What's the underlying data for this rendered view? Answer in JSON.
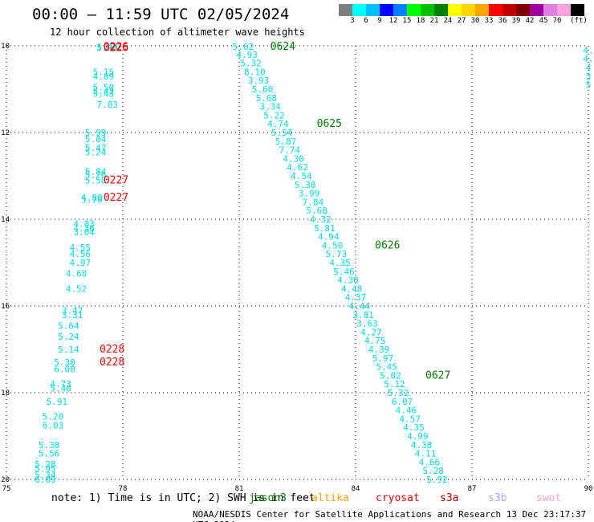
{
  "header": {
    "title": "00:00 – 11:59 UTC 02/05/2024",
    "subtitle": "12 hour collection of altimeter wave heights"
  },
  "colorbar": {
    "colors": [
      "#7f7f7f",
      "#00ffff",
      "#00bfff",
      "#0000ff",
      "#0080ff",
      "#00ff00",
      "#00c000",
      "#008000",
      "#ffff00",
      "#ffd700",
      "#ffa500",
      "#ff0000",
      "#c00000",
      "#800000",
      "#a000a0",
      "#e080e0",
      "#ffa0e0",
      "#000000"
    ],
    "labels": [
      "3",
      "6",
      "9",
      "12",
      "15",
      "18",
      "21",
      "24",
      "27",
      "30",
      "33",
      "36",
      "39",
      "42",
      "45",
      "70"
    ],
    "unit": "(ft)"
  },
  "footer": {
    "note": "note:  1) Time is in UTC; 2) SWH is in feet",
    "credit": "NOAA/NESDIS Center for Satellite Applications and Research   13 Dec 23:17:37 UTC 2024",
    "satellites": [
      {
        "name": "jason3",
        "color": "#008000"
      },
      {
        "name": "altika",
        "color": "#ffa500"
      },
      {
        "name": "cryosat",
        "color": "#ff0000"
      },
      {
        "name": "s3a",
        "color": "#c00000"
      },
      {
        "name": "s3b",
        "color": "#b0a0ff"
      },
      {
        "name": "swot",
        "color": "#ffa0e0"
      }
    ]
  },
  "chart_data": {
    "type": "scatter",
    "title": "00:00 – 11:59 UTC 02/05/2024",
    "subtitle": "12 hour collection of altimeter wave heights",
    "xlim": [
      75,
      90
    ],
    "ylim": [
      -20,
      -10
    ],
    "x_ticks": [
      "75",
      "78",
      "81",
      "84",
      "87",
      "90"
    ],
    "y_ticks": [
      "-10",
      "-12",
      "-14",
      "-16",
      "-18",
      "-20"
    ],
    "grid": true,
    "series": [
      {
        "name": "cryosat",
        "color": "#00e0e0",
        "points": [
          [
            77.6,
            -10.03,
            "5.47"
          ],
          [
            77.6,
            -10.05,
            "5.00"
          ],
          [
            77.5,
            -10.6,
            "5.15"
          ],
          [
            77.5,
            -10.7,
            "4.89"
          ],
          [
            77.5,
            -10.95,
            "5.50"
          ],
          [
            77.5,
            -11.05,
            "5.42"
          ],
          [
            77.5,
            -11.1,
            "5.43"
          ],
          [
            77.6,
            -11.35,
            "7.83"
          ],
          [
            77.3,
            -12.0,
            "5.99"
          ],
          [
            77.3,
            -12.15,
            "5.04"
          ],
          [
            77.3,
            -12.35,
            "5.47"
          ],
          [
            77.3,
            -12.45,
            "5.24"
          ],
          [
            77.3,
            -12.9,
            "5.84"
          ],
          [
            77.3,
            -12.97,
            "5.26"
          ],
          [
            77.3,
            -13.1,
            "5.58"
          ],
          [
            77.2,
            -13.5,
            "4.80"
          ],
          [
            77.2,
            -13.55,
            "5.70"
          ],
          [
            77.0,
            -14.1,
            "4.03"
          ],
          [
            77.0,
            -14.2,
            "4.36"
          ],
          [
            77.0,
            -14.3,
            "3.04"
          ],
          [
            76.9,
            -14.65,
            "4.55"
          ],
          [
            76.9,
            -14.8,
            "4.56"
          ],
          [
            76.9,
            -15.0,
            "4.97"
          ],
          [
            76.8,
            -15.25,
            "4.68"
          ],
          [
            76.8,
            -15.6,
            "4.52"
          ],
          [
            76.7,
            -16.1,
            "3.47"
          ],
          [
            76.7,
            -16.2,
            "3.31"
          ],
          [
            76.6,
            -16.45,
            "5.64"
          ],
          [
            76.6,
            -16.7,
            "5.24"
          ],
          [
            76.6,
            -17.0,
            "5.14"
          ],
          [
            76.5,
            -17.3,
            "5.30"
          ],
          [
            76.5,
            -17.45,
            "6.00"
          ],
          [
            76.4,
            -17.8,
            "4.73"
          ],
          [
            76.4,
            -17.9,
            "5.40"
          ],
          [
            76.3,
            -18.2,
            "5.91"
          ],
          [
            76.2,
            -18.55,
            "5.20"
          ],
          [
            76.2,
            -18.75,
            "6.03"
          ],
          [
            76.1,
            -19.2,
            "5.38"
          ],
          [
            76.1,
            -19.4,
            "5.56"
          ],
          [
            76.0,
            -19.65,
            "5.28"
          ],
          [
            76.0,
            -19.75,
            "5.95"
          ],
          [
            76.0,
            -19.9,
            "5.34"
          ],
          [
            76.0,
            -20.0,
            "6.09"
          ],
          [
            90,
            -10.1,
            "4."
          ],
          [
            90,
            -10.3,
            "4."
          ],
          [
            90,
            -10.5,
            "4"
          ],
          [
            90,
            -10.7,
            "3"
          ],
          [
            90,
            -10.9,
            "5"
          ]
        ],
        "times": [
          {
            "x": 77.5,
            "y": -10.03,
            "label": "0226"
          },
          {
            "x": 77.5,
            "y": -10.05,
            "label": "0226"
          },
          {
            "x": 77.5,
            "y": -13.1,
            "label": "0227"
          },
          {
            "x": 77.5,
            "y": -13.5,
            "label": "0227"
          },
          {
            "x": 77.4,
            "y": -17.0,
            "label": "0228"
          },
          {
            "x": 77.4,
            "y": -17.3,
            "label": "0228"
          }
        ]
      },
      {
        "name": "jason3",
        "color": "#00e0e0",
        "points": [
          [
            81.1,
            -10.02,
            "5.62"
          ],
          [
            81.2,
            -10.2,
            "4.93"
          ],
          [
            81.3,
            -10.4,
            "5.32"
          ],
          [
            81.4,
            -10.6,
            "8.10"
          ],
          [
            81.5,
            -10.8,
            "3.93"
          ],
          [
            81.6,
            -11.0,
            "5.60"
          ],
          [
            81.7,
            -11.2,
            "5.68"
          ],
          [
            81.8,
            -11.4,
            "3.34"
          ],
          [
            81.9,
            -11.6,
            "5.22"
          ],
          [
            82.0,
            -11.8,
            "4.74"
          ],
          [
            82.1,
            -12.0,
            "5.54"
          ],
          [
            82.2,
            -12.2,
            "5.87"
          ],
          [
            82.3,
            -12.4,
            "7.74"
          ],
          [
            82.4,
            -12.6,
            "4.30"
          ],
          [
            82.5,
            -12.8,
            "4.62"
          ],
          [
            82.6,
            -13.0,
            "4.54"
          ],
          [
            82.7,
            -13.2,
            "5.30"
          ],
          [
            82.8,
            -13.4,
            "3.99"
          ],
          [
            82.9,
            -13.6,
            "7.84"
          ],
          [
            83.0,
            -13.8,
            "5.68"
          ],
          [
            83.1,
            -14.0,
            "4.32"
          ],
          [
            83.2,
            -14.2,
            "5.81"
          ],
          [
            83.3,
            -14.4,
            "4.94"
          ],
          [
            83.4,
            -14.6,
            "4.50"
          ],
          [
            83.5,
            -14.8,
            "5.73"
          ],
          [
            83.6,
            -15.0,
            "4.35"
          ],
          [
            83.7,
            -15.2,
            "5.46"
          ],
          [
            83.8,
            -15.4,
            "4.30"
          ],
          [
            83.9,
            -15.6,
            "4.48"
          ],
          [
            84.0,
            -15.8,
            "4.37"
          ],
          [
            84.1,
            -16.0,
            "4.44"
          ],
          [
            84.2,
            -16.2,
            "3.81"
          ],
          [
            84.3,
            -16.4,
            "3.63"
          ],
          [
            84.4,
            -16.6,
            "4.27"
          ],
          [
            84.5,
            -16.8,
            "4.75"
          ],
          [
            84.6,
            -17.0,
            "4.39"
          ],
          [
            84.7,
            -17.2,
            "5.97"
          ],
          [
            84.8,
            -17.4,
            "5.45"
          ],
          [
            84.9,
            -17.6,
            "5.02"
          ],
          [
            85.0,
            -17.8,
            "5.12"
          ],
          [
            85.1,
            -18.0,
            "5.32"
          ],
          [
            85.2,
            -18.2,
            "6.07"
          ],
          [
            85.3,
            -18.4,
            "4.46"
          ],
          [
            85.4,
            -18.6,
            "4.57"
          ],
          [
            85.5,
            -18.8,
            "4.35"
          ],
          [
            85.6,
            -19.0,
            "4.99"
          ],
          [
            85.7,
            -19.2,
            "4.38"
          ],
          [
            85.8,
            -19.4,
            "4.11"
          ],
          [
            85.9,
            -19.6,
            "4.66"
          ],
          [
            86.0,
            -19.8,
            "5.28"
          ],
          [
            86.1,
            -20.0,
            "5.92"
          ]
        ],
        "times": [
          {
            "x": 81.8,
            "y": -10.02,
            "label": "0624"
          },
          {
            "x": 83.0,
            "y": -11.8,
            "label": "0625"
          },
          {
            "x": 84.5,
            "y": -14.6,
            "label": "0626"
          },
          {
            "x": 85.8,
            "y": -17.6,
            "label": "0627"
          }
        ]
      }
    ]
  }
}
